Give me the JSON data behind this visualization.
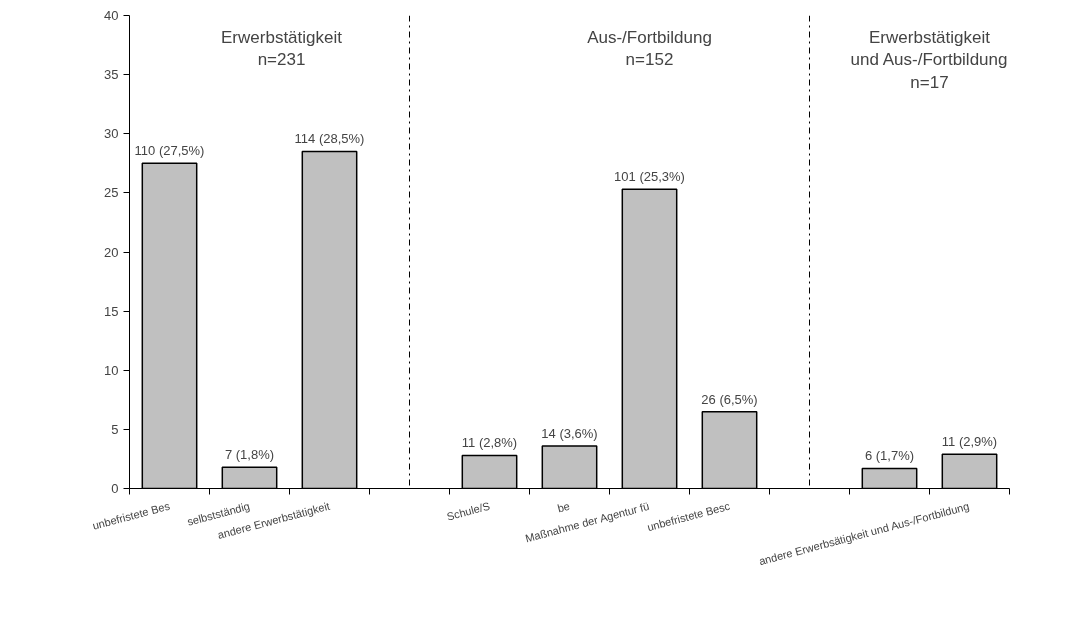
{
  "chart_data": {
    "type": "bar",
    "categories": [
      "unbefristete Bes",
      "selbstständig",
      "andere Erwerbstätigkeit",
      null,
      "Schule/S",
      "be",
      "Maßnahme der Agentur fü",
      "unbefristete Besc",
      null,
      null,
      "andere Erwerbsätigkeit und Aus-/Fortbildung"
    ],
    "values": [
      27.5,
      1.8,
      28.5,
      null,
      2.8,
      3.6,
      25.3,
      6.5,
      null,
      1.7,
      2.9
    ],
    "value_labels": [
      "110 (27,5%)",
      "7 (1,8%)",
      "114 (28,5%)",
      null,
      "11 (2,8%)",
      "14 (3,6%)",
      "101 (25,3%)",
      "26 (6,5%)",
      null,
      "6 (1,7%)",
      "11 (2,9%)"
    ],
    "color": "#c0c0c0",
    "ylim": [
      0,
      40
    ],
    "yticks": [
      0,
      5,
      10,
      15,
      20,
      25,
      30,
      35,
      40
    ],
    "annotations": [
      "Erwerbstätigkeit\nn=231",
      "Aus-/Fortbildung\nn=152",
      "Erwerbstätigkeit\nund Aus-/Fortbildung\nn=17"
    ]
  }
}
